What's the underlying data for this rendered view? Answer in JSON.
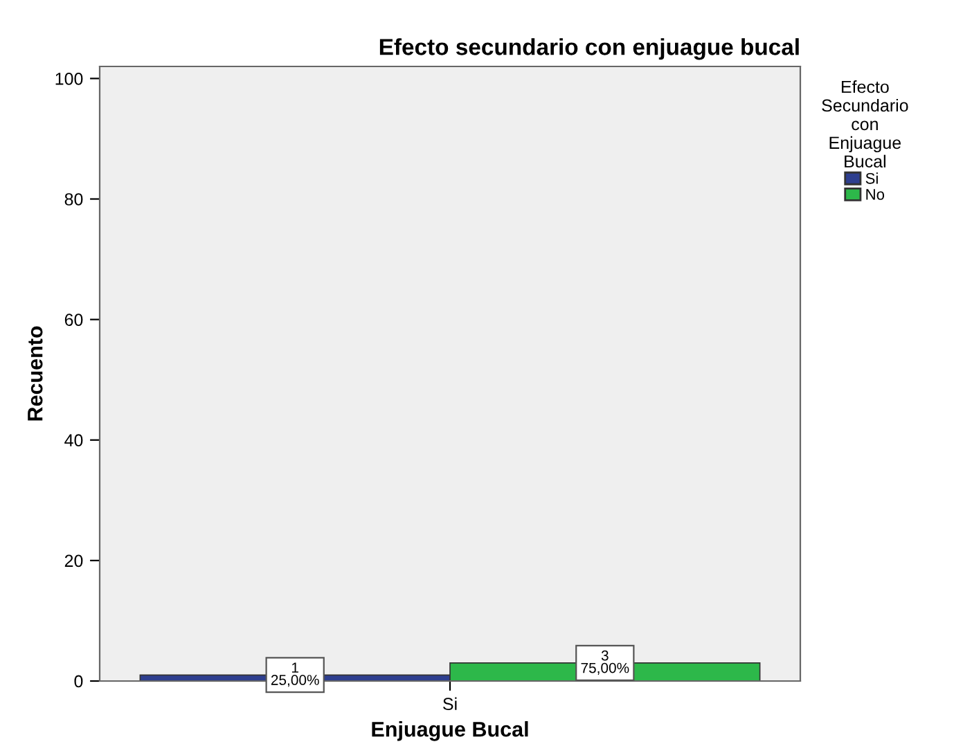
{
  "chart_data": {
    "type": "bar",
    "title": "Efecto secundario con enjuague bucal",
    "xlabel": "Enjuague Bucal",
    "ylabel": "Recuento",
    "legend_title": "Efecto\nSecundario\ncon\nEnjuague\nBucal",
    "categories": [
      "Si"
    ],
    "series": [
      {
        "name": "Si",
        "color": "#2e3f8f",
        "values": [
          1
        ],
        "value_labels": [
          "1\n25,00%"
        ]
      },
      {
        "name": "No",
        "color": "#2db84a",
        "values": [
          3
        ],
        "value_labels": [
          "3\n75,00%"
        ]
      }
    ],
    "ylim": [
      0,
      102
    ],
    "yticks": [
      0,
      20,
      40,
      60,
      80,
      100
    ],
    "grid": false,
    "legend": "right"
  }
}
